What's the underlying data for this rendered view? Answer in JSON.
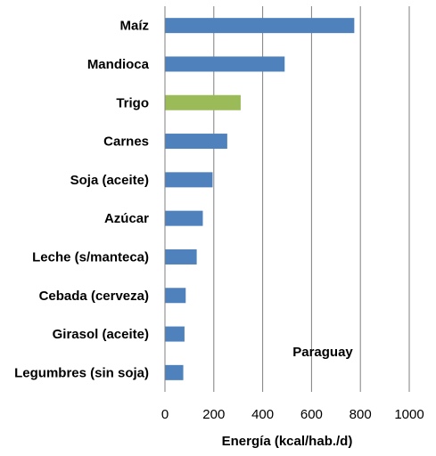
{
  "chart_data": {
    "type": "bar",
    "orientation": "horizontal",
    "categories": [
      "Maíz",
      "Mandioca",
      "Trigo",
      "Carnes",
      "Soja (aceite)",
      "Azúcar",
      "Leche (s/manteca)",
      "Cebada (cerveza)",
      "Girasol (aceite)",
      "Legumbres (sin soja)"
    ],
    "values": [
      775,
      490,
      310,
      255,
      195,
      155,
      130,
      85,
      80,
      75
    ],
    "highlight_index": 2,
    "colors": {
      "default": "#4f81bd",
      "highlight": "#9bbb59",
      "grid": "#7f7f7f"
    },
    "xlabel": "Energía (kcal/hab./d)",
    "xlim": [
      0,
      1000
    ],
    "xticks": [
      "0",
      "200",
      "400",
      "600",
      "800",
      "1000"
    ],
    "grid": "vertical",
    "annotation": "Paraguay"
  }
}
